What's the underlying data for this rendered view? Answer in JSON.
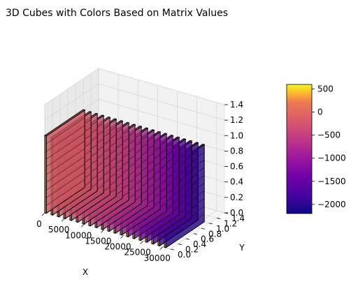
{
  "chart_data": {
    "type": "3d-bar",
    "title": "3D Cubes with Colors Based on Matrix Values",
    "xlabel": "X",
    "ylabel": "Y",
    "zlabel": "",
    "xlim": [
      0,
      32000
    ],
    "ylim": [
      0,
      1.4
    ],
    "zlim": [
      0,
      1.4
    ],
    "x_ticks": [
      0,
      5000,
      10000,
      15000,
      20000,
      25000,
      30000
    ],
    "y_ticks": [
      0.0,
      0.2,
      0.4,
      0.6,
      0.8,
      1.0,
      1.2,
      1.4
    ],
    "z_ticks": [
      0.0,
      0.2,
      0.4,
      0.6,
      0.8,
      1.0,
      1.2,
      1.4
    ],
    "x_tick_labels": [
      "0",
      "5000",
      "10000",
      "15000",
      "20000",
      "25000",
      "30000"
    ],
    "y_tick_labels": [
      "0.0",
      "0.2",
      "0.4",
      "0.6",
      "0.8",
      "1.0",
      "1.2",
      "1.4"
    ],
    "z_tick_labels": [
      "0.0",
      "0.2",
      "0.4",
      "0.6",
      "0.8",
      "1.0",
      "1.2",
      "1.4"
    ],
    "grid": true,
    "cube_height": 1.0,
    "cube_depth": 1.0,
    "cube_x_positions": [
      0,
      1600,
      3200,
      4800,
      6400,
      8000,
      9600,
      11200,
      12800,
      14400,
      16000,
      17600,
      19200,
      20800,
      22400,
      24000,
      25600,
      27200,
      28800,
      30400
    ],
    "cube_values": [
      -150,
      -200,
      -250,
      -300,
      -350,
      -400,
      -450,
      -500,
      -600,
      -700,
      -800,
      -900,
      -1000,
      -1100,
      -1250,
      -1400,
      -1550,
      -1700,
      -1850,
      -2000
    ],
    "front_face_value": 300,
    "colorbar": {
      "label": "",
      "min": -2200,
      "max": 600,
      "ticks": [
        500,
        0,
        -500,
        -1000,
        -1500,
        -2000
      ],
      "tick_labels": [
        "500",
        "0",
        "−500",
        "−1000",
        "−1500",
        "−2000"
      ],
      "colormap": "plasma"
    }
  }
}
